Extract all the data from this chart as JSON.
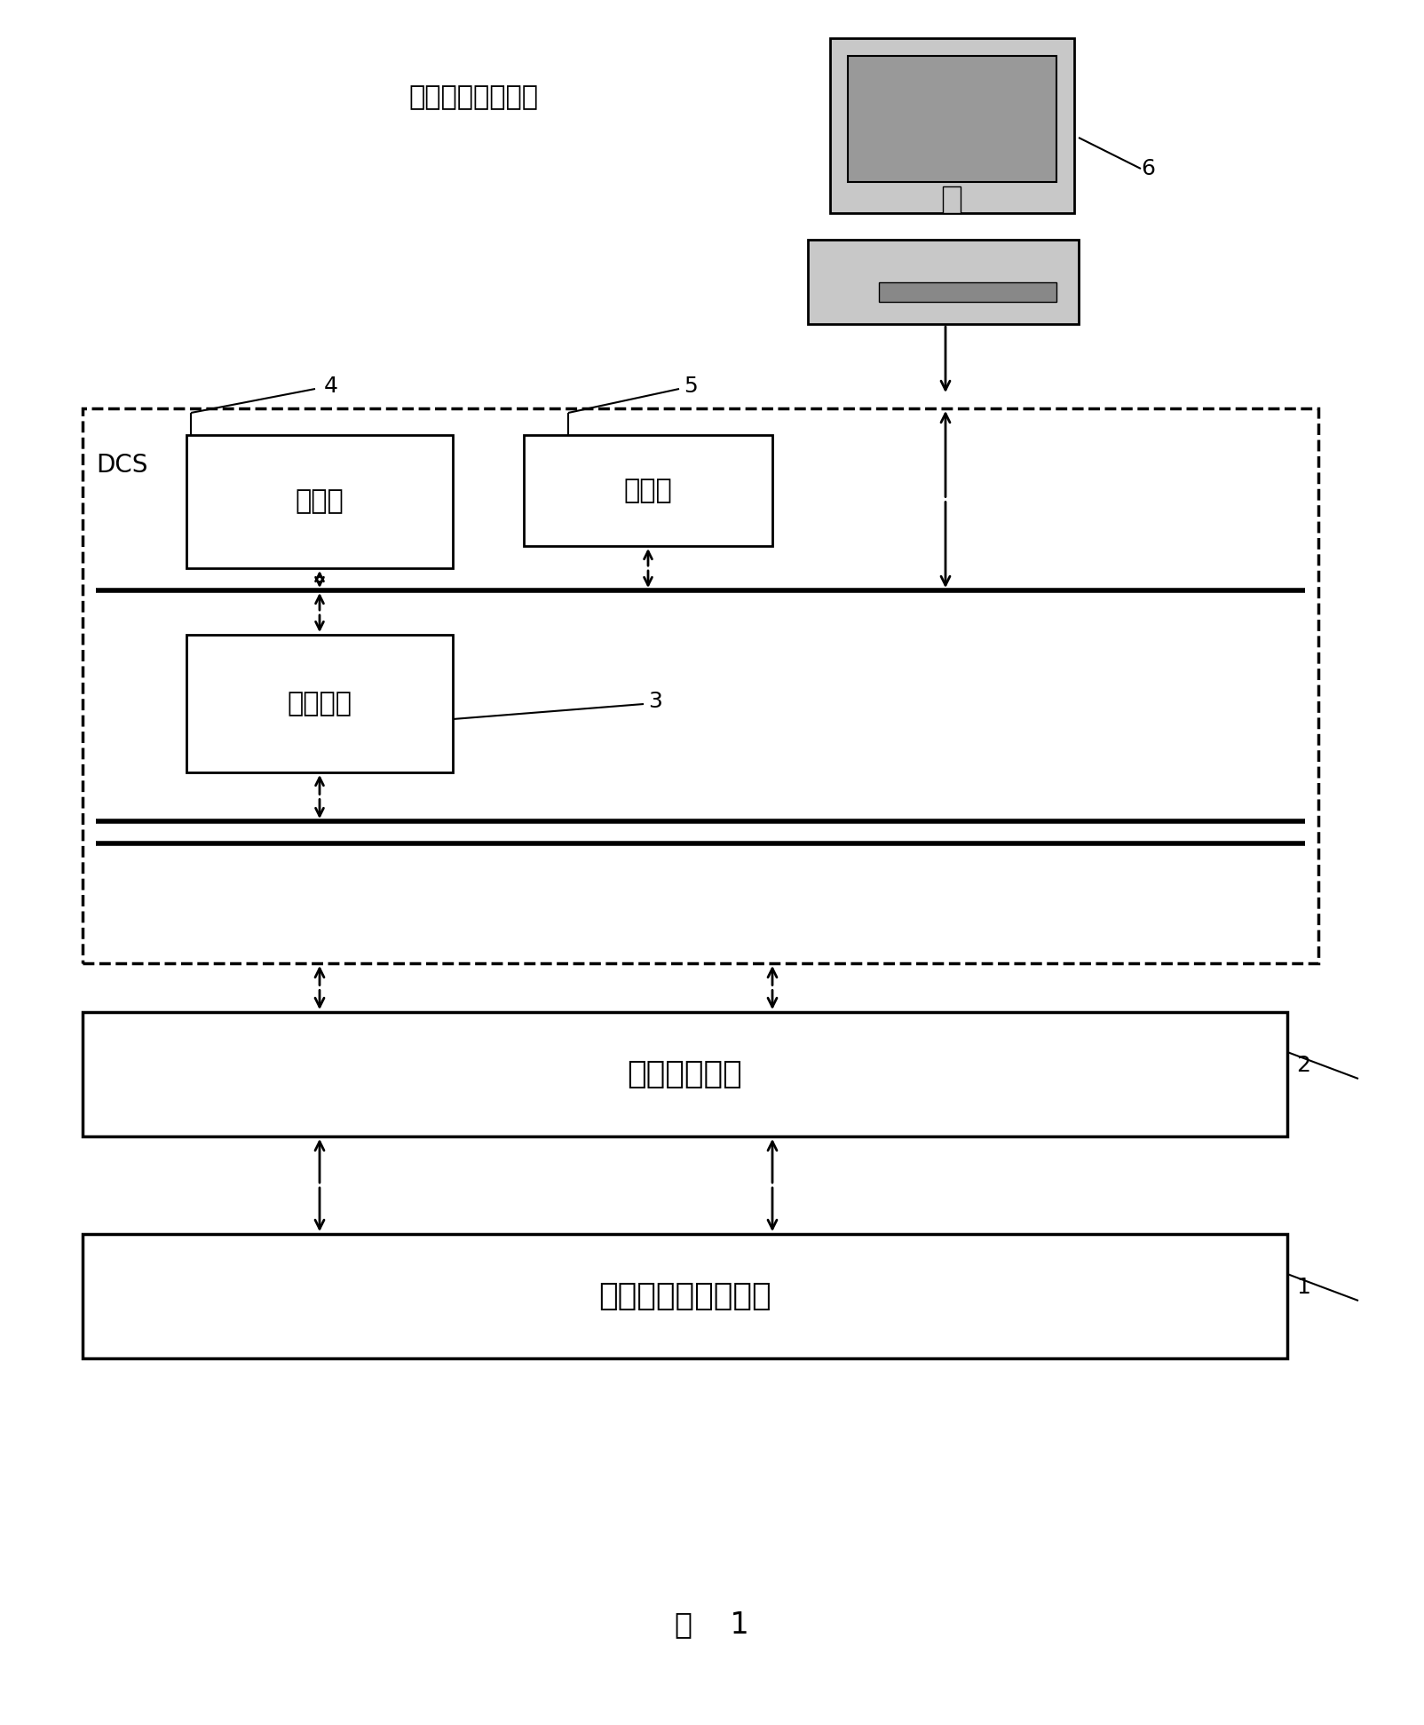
{
  "bg_color": "#ffffff",
  "title_label": "图    1",
  "computer_label": "软测量智能处理器",
  "label6": "6",
  "label5": "5",
  "label4": "4",
  "label3": "3",
  "label2": "2",
  "label1": "1",
  "dcs_label": "DCS",
  "box_kongzhi": "控制站",
  "box_shujuku": "数据库",
  "box_shujujiekou": "数据接口",
  "box_xianchang": "现场智能仪表",
  "box_jucheng": "聚丙烯生产过程对象",
  "fig_w": 16.04,
  "fig_h": 19.43,
  "dpi": 100
}
